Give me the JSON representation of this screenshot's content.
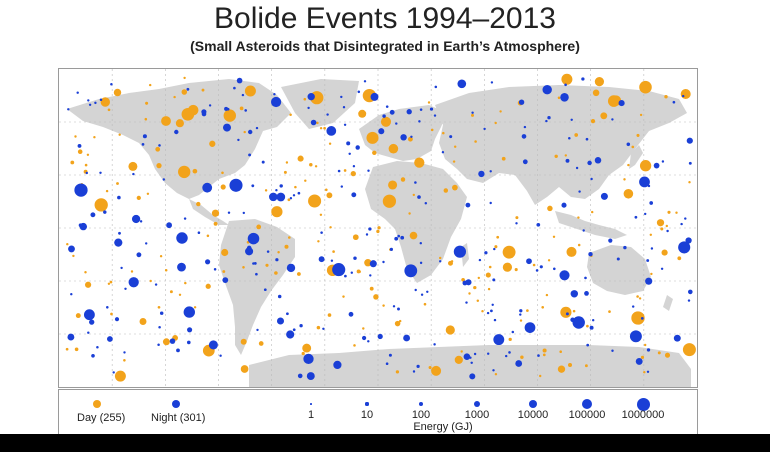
{
  "title": "Bolide Events 1994–2013",
  "subtitle": "(Small Asteroids that Disintegrated in Earth’s Atmosphere)",
  "colors": {
    "day": "#f2a31b",
    "night": "#1a3fd6",
    "land": "#d4d4d4",
    "grid": "#bbbbbb"
  },
  "legend": {
    "day_label": "Day (255)",
    "night_label": "Night (301)",
    "energy_title": "Energy (GJ)",
    "energy_levels": [
      "1",
      "10",
      "100",
      "1000",
      "10000",
      "100000",
      "1000000"
    ]
  }
}
